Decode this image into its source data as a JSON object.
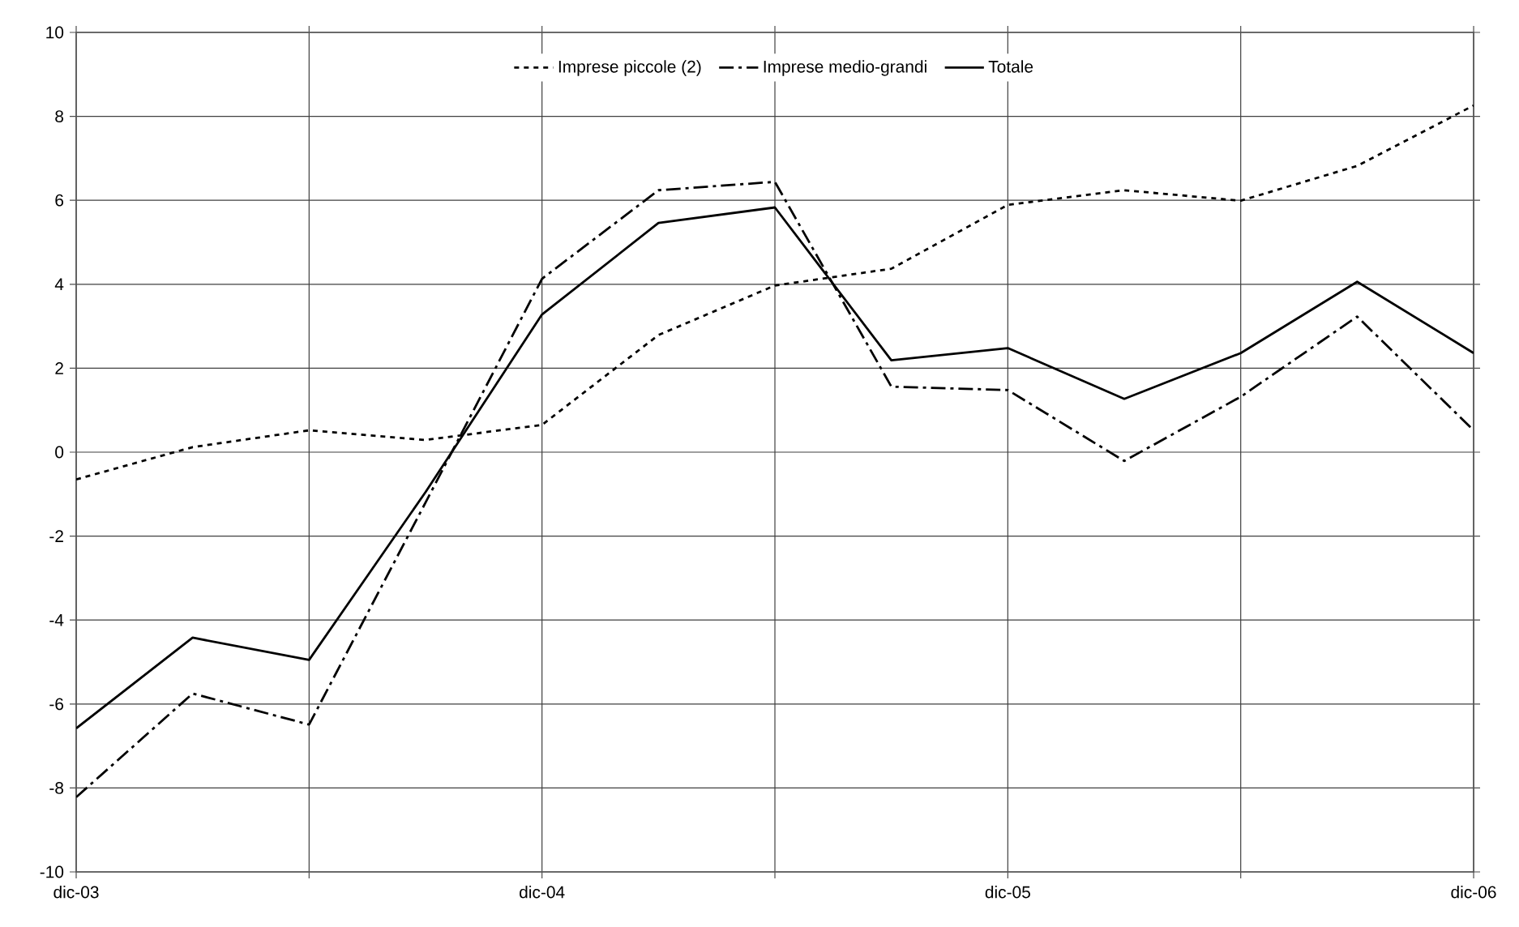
{
  "chart_data": {
    "type": "line",
    "categories": [
      "dic-03",
      null,
      null,
      null,
      "dic-04",
      null,
      null,
      null,
      "dic-05",
      null,
      null,
      null,
      "dic-06"
    ],
    "series": [
      {
        "name": "Imprese piccole (2)",
        "color": "#000000",
        "line_style": "dotted",
        "values": [
          -0.65,
          0.12,
          0.52,
          0.29,
          0.65,
          2.79,
          3.97,
          4.37,
          5.89,
          6.24,
          5.99,
          6.82,
          8.26
        ]
      },
      {
        "name": "Imprese medio-grandi",
        "color": "#000000",
        "line_style": "dashed",
        "values": [
          -8.22,
          -5.75,
          -6.49,
          -1.2,
          4.13,
          6.24,
          6.44,
          1.56,
          1.48,
          -0.21,
          1.32,
          3.23,
          0.52
        ]
      },
      {
        "name": "Totale",
        "color": "#000000",
        "line_style": "solid",
        "values": [
          -6.58,
          -4.42,
          -4.95,
          -0.95,
          3.28,
          5.46,
          5.83,
          2.19,
          2.48,
          1.27,
          2.36,
          4.06,
          2.36
        ]
      }
    ],
    "ylim": [
      -10,
      10
    ],
    "yticks": [
      -10,
      -8,
      -6,
      -4,
      -2,
      0,
      2,
      4,
      6,
      8,
      10
    ],
    "grid": true,
    "legend": "top",
    "marker": "none"
  }
}
